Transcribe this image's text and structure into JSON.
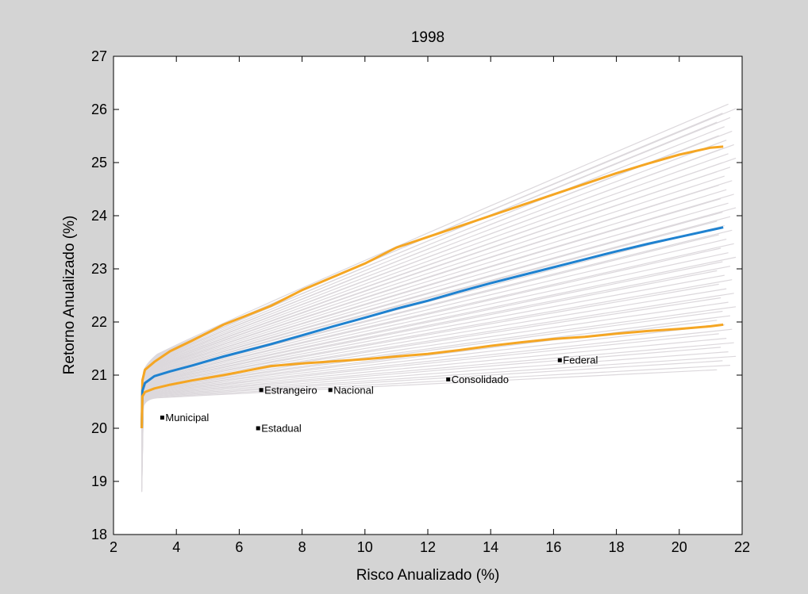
{
  "chart_data": {
    "type": "line",
    "title": "1998",
    "xlabel": "Risco Anualizado (%)",
    "ylabel": "Retorno Anualizado (%)",
    "xlim": [
      2,
      22
    ],
    "ylim": [
      18,
      27
    ],
    "xticks": [
      "2",
      "4",
      "6",
      "8",
      "10",
      "12",
      "14",
      "16",
      "18",
      "20",
      "22"
    ],
    "yticks": [
      "18",
      "19",
      "20",
      "21",
      "22",
      "23",
      "24",
      "25",
      "26",
      "27"
    ],
    "grid": false,
    "background_color": "#d4d4d4",
    "plot_color": "#ffffff",
    "series": [
      {
        "color": "#f5a623",
        "x": [
          2.9,
          2.92,
          3.0,
          3.3,
          3.8,
          4.5,
          5.5,
          7,
          8,
          9,
          10,
          11,
          12,
          13,
          14,
          15,
          16,
          17,
          18,
          19,
          20,
          21,
          21.4
        ],
        "y": [
          20.0,
          20.9,
          21.1,
          21.25,
          21.45,
          21.65,
          21.95,
          22.3,
          22.6,
          22.85,
          23.1,
          23.4,
          23.6,
          23.8,
          24.0,
          24.2,
          24.4,
          24.6,
          24.8,
          24.98,
          25.15,
          25.28,
          25.3
        ]
      },
      {
        "color": "#1f82d0",
        "x": [
          2.9,
          2.92,
          3.0,
          3.3,
          3.8,
          4.5,
          5.5,
          7,
          8,
          9,
          10,
          11,
          12,
          13,
          14,
          15,
          16,
          17,
          18,
          19,
          20,
          21,
          21.4
        ],
        "y": [
          20.0,
          20.7,
          20.85,
          20.98,
          21.07,
          21.18,
          21.35,
          21.58,
          21.75,
          21.92,
          22.08,
          22.25,
          22.4,
          22.57,
          22.73,
          22.88,
          23.03,
          23.18,
          23.33,
          23.47,
          23.6,
          23.73,
          23.78
        ]
      },
      {
        "color": "#f5a623",
        "x": [
          2.9,
          2.92,
          3.0,
          3.3,
          3.8,
          4.5,
          5.5,
          7,
          8,
          9,
          10,
          11,
          12,
          13,
          14,
          15,
          16,
          17,
          18,
          19,
          20,
          21,
          21.4
        ],
        "y": [
          20.0,
          20.6,
          20.68,
          20.75,
          20.82,
          20.9,
          21.0,
          21.17,
          21.22,
          21.26,
          21.3,
          21.35,
          21.4,
          21.47,
          21.55,
          21.62,
          21.68,
          21.72,
          21.78,
          21.83,
          21.87,
          21.92,
          21.95
        ]
      }
    ],
    "points": [
      {
        "label": "Municipal",
        "x": 3.55,
        "y": 20.2
      },
      {
        "label": "Estadual",
        "x": 6.6,
        "y": 20.0
      },
      {
        "label": "Estrangeiro",
        "x": 6.7,
        "y": 20.72
      },
      {
        "label": "Nacional",
        "x": 8.9,
        "y": 20.72
      },
      {
        "label": "Consolidado",
        "x": 12.65,
        "y": 20.92
      },
      {
        "label": "Federal",
        "x": 16.2,
        "y": 21.28
      }
    ],
    "ensemble": {
      "color": "#dcd8dc",
      "count": 60,
      "x_start": 2.9,
      "y_start_range": [
        18.8,
        20.2
      ],
      "y_knee_range": [
        20.55,
        21.2
      ],
      "y_end_range": [
        21.1,
        26.1
      ],
      "x_end_range": [
        21.2,
        21.8
      ]
    }
  }
}
